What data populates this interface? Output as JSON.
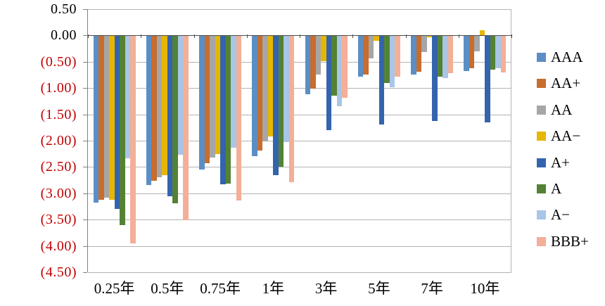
{
  "chart_data": {
    "type": "bar",
    "title": "",
    "xlabel": "",
    "ylabel": "",
    "categories": [
      "0.25年",
      "0.5年",
      "0.75年",
      "1年",
      "3年",
      "5年",
      "7年",
      "10年"
    ],
    "series": [
      {
        "name": "AAA",
        "color": "#5b8ec4",
        "values": [
          -3.18,
          -2.84,
          -2.55,
          -2.29,
          -1.12,
          -0.78,
          -0.74,
          -0.68
        ]
      },
      {
        "name": "AA+",
        "color": "#c76d2e",
        "values": [
          -3.12,
          -2.76,
          -2.43,
          -2.19,
          -1.01,
          -0.75,
          -0.69,
          -0.63
        ]
      },
      {
        "name": "AA",
        "color": "#a6a6a6",
        "values": [
          -3.08,
          -2.7,
          -2.32,
          -2.02,
          -0.74,
          -0.44,
          -0.31,
          -0.3
        ]
      },
      {
        "name": "AA−",
        "color": "#e6b600",
        "values": [
          -3.13,
          -2.65,
          -2.26,
          -1.92,
          -0.49,
          -0.1,
          -0.03,
          0.1
        ]
      },
      {
        "name": "A+",
        "color": "#3464ad",
        "values": [
          -3.3,
          -3.06,
          -2.83,
          -2.65,
          -1.8,
          -1.69,
          -1.63,
          -1.65
        ]
      },
      {
        "name": "A",
        "color": "#548235",
        "values": [
          -3.6,
          -3.19,
          -2.81,
          -2.5,
          -1.15,
          -0.91,
          -0.78,
          -0.65
        ]
      },
      {
        "name": "A−",
        "color": "#a9c5e8",
        "values": [
          -2.33,
          -2.27,
          -2.14,
          -2.03,
          -1.35,
          -0.99,
          -0.81,
          -0.63
        ]
      },
      {
        "name": "BBB+",
        "color": "#f3af97",
        "values": [
          -3.95,
          -3.51,
          -3.14,
          -2.79,
          -1.18,
          -0.78,
          -0.72,
          -0.7
        ]
      }
    ],
    "ylim": [
      -4.5,
      0.5
    ],
    "y_ticks": [
      0.5,
      0.0,
      -0.5,
      -1.0,
      -1.5,
      -2.0,
      -2.5,
      -3.0,
      -3.5,
      -4.0,
      -4.5
    ],
    "y_tick_labels": [
      "0.50",
      "0.00",
      "(0.50)",
      "(1.00)",
      "(1.50)",
      "(2.00)",
      "(2.50)",
      "(3.00)",
      "(3.50)",
      "(4.00)",
      "(4.50)"
    ],
    "grid": true,
    "legend_position": "right",
    "colors": {
      "negative_tick_label": "#c00000",
      "positive_tick_label": "#000000",
      "gridline": "#b3b3b3",
      "axis": "#808080",
      "zero_axis": "#4d4d4d",
      "background": "#ffffff"
    }
  }
}
